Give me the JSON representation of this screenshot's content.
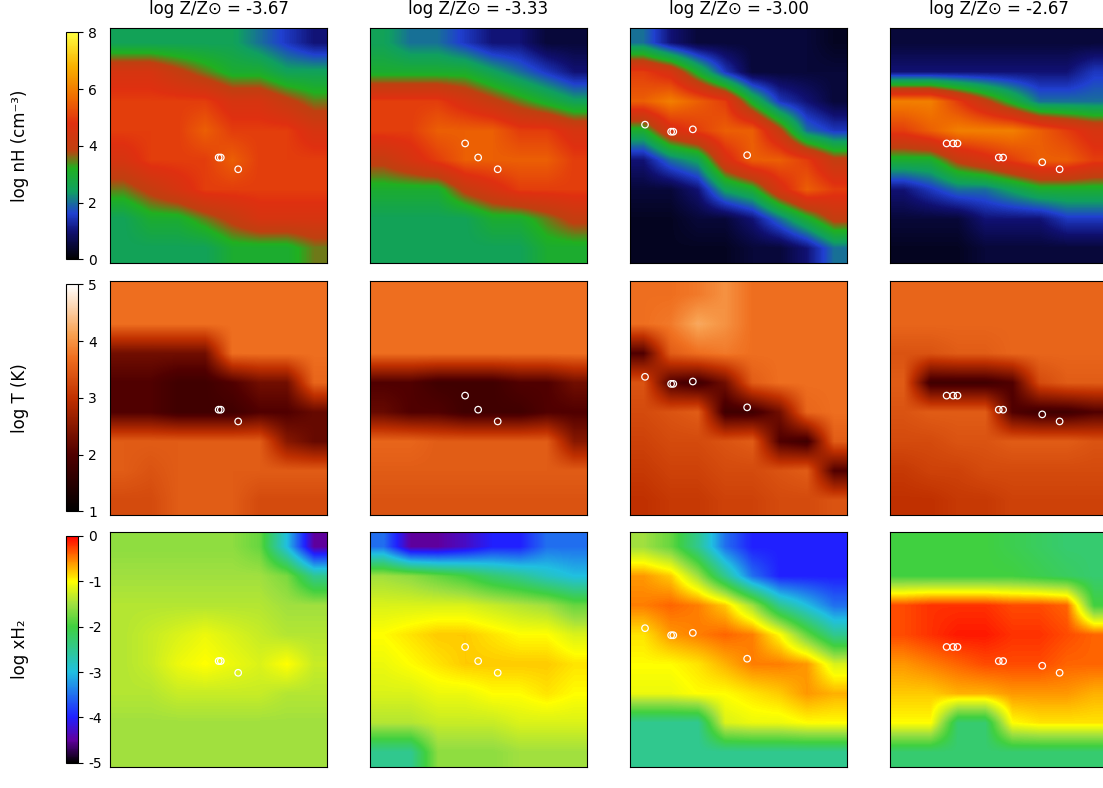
{
  "chart_data": {
    "type": "heatmap",
    "tick_labels": false,
    "columns": [
      "log Z/Z⊙ = -3.67",
      "log Z/Z⊙ = -3.33",
      "log Z/Z⊙ = -3.00",
      "log Z/Z⊙ = -2.67"
    ],
    "sinks": [
      [
        [
          0.5,
          0.45
        ],
        [
          0.51,
          0.45
        ],
        [
          0.59,
          0.4
        ]
      ],
      [
        [
          0.44,
          0.51
        ],
        [
          0.5,
          0.45
        ],
        [
          0.59,
          0.4
        ]
      ],
      [
        [
          0.07,
          0.59
        ],
        [
          0.19,
          0.56
        ],
        [
          0.2,
          0.56
        ],
        [
          0.29,
          0.57
        ],
        [
          0.54,
          0.46
        ]
      ],
      [
        [
          0.26,
          0.51
        ],
        [
          0.29,
          0.51
        ],
        [
          0.31,
          0.51
        ],
        [
          0.5,
          0.45
        ],
        [
          0.52,
          0.45
        ],
        [
          0.7,
          0.43
        ],
        [
          0.78,
          0.4
        ]
      ]
    ],
    "xlim": [
      0,
      1
    ],
    "ylim": [
      0,
      1
    ],
    "rows": [
      {
        "label": "log nH (cm⁻³)",
        "colorbar": {
          "range": [
            0,
            8
          ],
          "ticks": [
            0,
            2,
            4,
            6,
            8
          ]
        },
        "panels": [
          [
            [
              2.5,
              2.5,
              2.5,
              2.5,
              2.5,
              2,
              1.5,
              1
            ],
            [
              4.5,
              4.5,
              4,
              3.5,
              3,
              3,
              2.5,
              2.5
            ],
            [
              5,
              5,
              5,
              5,
              4.5,
              4.5,
              4,
              3.5
            ],
            [
              5,
              5,
              5,
              5.5,
              5,
              5,
              5,
              4.5
            ],
            [
              4.5,
              5,
              5,
              5,
              5.5,
              5,
              5,
              5
            ],
            [
              3.5,
              4,
              4.5,
              5,
              5,
              5,
              5,
              5
            ],
            [
              2.5,
              3,
              3,
              3.5,
              4,
              4.5,
              4.5,
              4.5
            ],
            [
              2.5,
              2.5,
              2.5,
              2.5,
              3,
              3,
              3,
              3.5
            ]
          ],
          [
            [
              2.5,
              2,
              2,
              1.5,
              1,
              1,
              0.5,
              0.5
            ],
            [
              3,
              3,
              3,
              3,
              2.5,
              2,
              1.5,
              1
            ],
            [
              5,
              5,
              5,
              4.5,
              4,
              3.5,
              3,
              2.5
            ],
            [
              5,
              5,
              5.5,
              5.5,
              5.5,
              5,
              5,
              4.5
            ],
            [
              4,
              4.5,
              5,
              5.5,
              5.5,
              5.5,
              5.5,
              5
            ],
            [
              3,
              3,
              3,
              4,
              4.5,
              5,
              5,
              5
            ],
            [
              2.5,
              2.5,
              2.5,
              2.5,
              3,
              3,
              3.5,
              4
            ],
            [
              2.5,
              2.5,
              2.5,
              2.5,
              2.5,
              2.5,
              3,
              3
            ]
          ],
          [
            [
              2,
              1,
              0.5,
              0.5,
              0.5,
              0.5,
              0.5,
              0.3
            ],
            [
              5,
              4.5,
              3,
              1.5,
              0.5,
              0.5,
              0.5,
              0.5
            ],
            [
              5.5,
              6,
              5.5,
              5,
              3,
              1.5,
              1,
              0.5
            ],
            [
              3,
              4.5,
              5,
              5.5,
              5.5,
              4,
              2,
              1.5
            ],
            [
              1,
              2,
              2.5,
              4.5,
              5.5,
              5.5,
              5,
              4
            ],
            [
              0.5,
              0.5,
              1,
              2.5,
              3,
              4.5,
              5.5,
              5
            ],
            [
              0.3,
              0.3,
              0.5,
              0.5,
              1,
              2,
              3,
              4
            ],
            [
              0.3,
              0.3,
              0.3,
              0.3,
              0.5,
              0.5,
              1,
              2
            ]
          ],
          [
            [
              0.5,
              0.5,
              0.5,
              0.5,
              0.5,
              0.5,
              0.5,
              0.5
            ],
            [
              1,
              1,
              1,
              1,
              1,
              1,
              1,
              1.5
            ],
            [
              6,
              6,
              5,
              4,
              3,
              2,
              2,
              2
            ],
            [
              5,
              5.5,
              6,
              6,
              6,
              5.5,
              5,
              4.5
            ],
            [
              3,
              3,
              4,
              4.5,
              5,
              5.5,
              5.5,
              5
            ],
            [
              1,
              1.5,
              2,
              2,
              2.5,
              3,
              3,
              3
            ],
            [
              0.5,
              0.5,
              0.5,
              1,
              1,
              1,
              1.5,
              1.5
            ],
            [
              0.3,
              0.3,
              0.3,
              0.5,
              0.5,
              0.5,
              0.5,
              0.5
            ]
          ]
        ]
      },
      {
        "label": "log T (K)",
        "colorbar": {
          "range": [
            1,
            5
          ],
          "ticks": [
            1,
            2,
            3,
            4,
            5
          ]
        },
        "panels": [
          [
            [
              3.7,
              3.7,
              3.7,
              3.7,
              3.7,
              3.7,
              3.7,
              3.7
            ],
            [
              3.7,
              3.7,
              3.7,
              3.7,
              3.7,
              3.7,
              3.7,
              3.7
            ],
            [
              2.3,
              2.3,
              2.3,
              2.3,
              3.7,
              3.7,
              3.7,
              3.7
            ],
            [
              2,
              2,
              1.8,
              1.8,
              2,
              2.3,
              2.3,
              3.6
            ],
            [
              2,
              2,
              1.8,
              1.8,
              1.8,
              2,
              2,
              2.2
            ],
            [
              3.5,
              3.5,
              3.5,
              3.5,
              3.5,
              3.5,
              2.5,
              2.2
            ],
            [
              3.5,
              3.4,
              3.5,
              3.5,
              3.5,
              3.5,
              3.5,
              3.5
            ],
            [
              3.3,
              3.3,
              3.5,
              3.5,
              3.5,
              3.3,
              3.3,
              3.3
            ]
          ],
          [
            [
              3.7,
              3.7,
              3.7,
              3.7,
              3.7,
              3.7,
              3.7,
              3.7
            ],
            [
              3.7,
              3.7,
              3.7,
              3.7,
              3.7,
              3.7,
              3.7,
              3.7
            ],
            [
              3.7,
              3.7,
              3.7,
              3.7,
              3.7,
              3.7,
              3.7,
              3.7
            ],
            [
              2,
              2,
              1.8,
              1.8,
              1.8,
              2,
              2,
              2.3
            ],
            [
              2.2,
              2,
              2,
              1.8,
              1.8,
              1.8,
              2,
              2
            ],
            [
              3.6,
              3.6,
              3.5,
              3.5,
              3.5,
              3.5,
              3.5,
              2.5
            ],
            [
              3.5,
              3.5,
              3.5,
              3.5,
              3.5,
              3.5,
              3.5,
              3.5
            ],
            [
              3.4,
              3.4,
              3.4,
              3.4,
              3.4,
              3.4,
              3.4,
              3.4
            ]
          ],
          [
            [
              3.7,
              3.7,
              3.8,
              4.0,
              3.7,
              3.7,
              3.7,
              3.7
            ],
            [
              3.7,
              3.8,
              4.2,
              4.0,
              3.7,
              3.7,
              3.7,
              3.7
            ],
            [
              2.0,
              3.5,
              3.7,
              3.8,
              3.7,
              3.7,
              3.7,
              3.7
            ],
            [
              3.4,
              2.0,
              1.8,
              2.3,
              3.5,
              3.7,
              3.7,
              3.7
            ],
            [
              3.3,
              3.4,
              3.5,
              1.8,
              1.8,
              2.3,
              3.6,
              3.7
            ],
            [
              3.2,
              3.3,
              3.3,
              3.4,
              3.5,
              2.0,
              1.8,
              3.5
            ],
            [
              3.1,
              3.2,
              3.2,
              3.3,
              3.3,
              3.4,
              3.5,
              2.0
            ],
            [
              3.0,
              3.1,
              3.1,
              3.2,
              3.2,
              3.3,
              3.3,
              3.4
            ]
          ],
          [
            [
              3.6,
              3.6,
              3.6,
              3.6,
              3.6,
              3.6,
              3.6,
              3.6
            ],
            [
              3.6,
              3.6,
              3.6,
              3.6,
              3.6,
              3.6,
              3.6,
              3.6
            ],
            [
              3.4,
              3.4,
              3.5,
              3.5,
              3.6,
              3.6,
              3.6,
              3.6
            ],
            [
              3.5,
              1.8,
              1.8,
              1.8,
              2.0,
              3.3,
              3.5,
              3.5
            ],
            [
              3.4,
              3.5,
              3.5,
              3.5,
              2.0,
              1.8,
              1.8,
              2.0
            ],
            [
              3.3,
              3.3,
              3.4,
              3.4,
              3.5,
              3.5,
              3.5,
              3.4
            ],
            [
              3.1,
              3.2,
              3.2,
              3.3,
              3.3,
              3.3,
              3.3,
              3.3
            ],
            [
              3.0,
              3.0,
              3.1,
              3.1,
              3.2,
              3.2,
              3.2,
              3.2
            ]
          ]
        ]
      },
      {
        "label": "log xH₂",
        "colorbar": {
          "range": [
            -5,
            0
          ],
          "ticks": [
            -5,
            -4,
            -3,
            -2,
            -1,
            0
          ]
        },
        "panels": [
          [
            [
              -1.6,
              -1.6,
              -1.6,
              -1.6,
              -1.6,
              -1.8,
              -3,
              -4.5
            ],
            [
              -1.5,
              -1.5,
              -1.5,
              -1.5,
              -1.5,
              -1.5,
              -1.7,
              -2.5
            ],
            [
              -1.4,
              -1.4,
              -1.4,
              -1.4,
              -1.4,
              -1.4,
              -1.5,
              -1.5
            ],
            [
              -1.4,
              -1.3,
              -1.2,
              -1.1,
              -1.2,
              -1.3,
              -1.4,
              -1.4
            ],
            [
              -1.4,
              -1.3,
              -1.1,
              -1.0,
              -1.1,
              -1.2,
              -1.0,
              -1.3
            ],
            [
              -1.4,
              -1.4,
              -1.3,
              -1.3,
              -1.3,
              -1.3,
              -1.4,
              -1.4
            ],
            [
              -1.5,
              -1.5,
              -1.5,
              -1.5,
              -1.5,
              -1.5,
              -1.5,
              -1.5
            ],
            [
              -1.5,
              -1.5,
              -1.5,
              -1.5,
              -1.5,
              -1.5,
              -1.5,
              -1.5
            ]
          ],
          [
            [
              -3.5,
              -4.5,
              -4.5,
              -4.3,
              -4,
              -4,
              -3.5,
              -3.5
            ],
            [
              -1.5,
              -1.6,
              -1.8,
              -2,
              -2.3,
              -2.5,
              -2.8,
              -3
            ],
            [
              -1.2,
              -1.2,
              -1.2,
              -1.2,
              -1.3,
              -1.4,
              -1.5,
              -1.8
            ],
            [
              -1.0,
              -0.9,
              -0.8,
              -0.8,
              -0.9,
              -1,
              -1,
              -1.2
            ],
            [
              -1.1,
              -1,
              -0.9,
              -0.8,
              -0.8,
              -0.8,
              -0.8,
              -0.9
            ],
            [
              -1.2,
              -1.2,
              -1.1,
              -1.1,
              -1,
              -1,
              -0.9,
              -1
            ],
            [
              -1.4,
              -1.4,
              -1.3,
              -1.3,
              -1.3,
              -1.2,
              -1.2,
              -1.2
            ],
            [
              -2.5,
              -2.5,
              -1.6,
              -1.6,
              -1.6,
              -1.5,
              -1.5,
              -1.5
            ]
          ],
          [
            [
              -1.5,
              -1.8,
              -2.5,
              -3.5,
              -4,
              -4,
              -4,
              -4
            ],
            [
              -0.6,
              -0.8,
              -1.5,
              -2.5,
              -3.5,
              -4,
              -4,
              -4
            ],
            [
              -0.5,
              -0.4,
              -0.5,
              -0.8,
              -1.5,
              -2.5,
              -3,
              -3.5
            ],
            [
              -0.9,
              -0.6,
              -0.5,
              -0.4,
              -0.5,
              -1,
              -1.8,
              -2.5
            ],
            [
              -1,
              -1,
              -0.9,
              -0.7,
              -0.5,
              -0.5,
              -0.6,
              -1.2
            ],
            [
              -1.1,
              -1.1,
              -1,
              -1,
              -0.9,
              -0.8,
              -0.6,
              -0.7
            ],
            [
              -2.5,
              -2.5,
              -2.5,
              -1.2,
              -1.1,
              -1.1,
              -1,
              -1
            ],
            [
              -2.5,
              -2.5,
              -2.5,
              -2.5,
              -2.5,
              -2.5,
              -2.5,
              -2.5
            ]
          ],
          [
            [
              -2,
              -2,
              -2,
              -2,
              -2.1,
              -2.2,
              -2.3,
              -2.3
            ],
            [
              -2,
              -2,
              -2,
              -2,
              -2,
              -2.1,
              -2.2,
              -2.3
            ],
            [
              -0.3,
              -0.2,
              -0.2,
              -0.2,
              -0.3,
              -0.3,
              -0.4,
              -2
            ],
            [
              -0.3,
              -0.2,
              -0.1,
              -0.1,
              -0.2,
              -0.2,
              -0.3,
              -0.4
            ],
            [
              -0.6,
              -0.5,
              -0.4,
              -0.3,
              -0.3,
              -0.3,
              -0.4,
              -0.4
            ],
            [
              -0.8,
              -0.8,
              -0.7,
              -0.7,
              -0.6,
              -0.6,
              -0.6,
              -0.7
            ],
            [
              -1,
              -1,
              -2.3,
              -2.3,
              -1,
              -0.9,
              -0.9,
              -0.9
            ],
            [
              -2.3,
              -2.3,
              -2.3,
              -2.3,
              -2.3,
              -2.3,
              -2.3,
              -2.3
            ]
          ]
        ]
      }
    ]
  }
}
